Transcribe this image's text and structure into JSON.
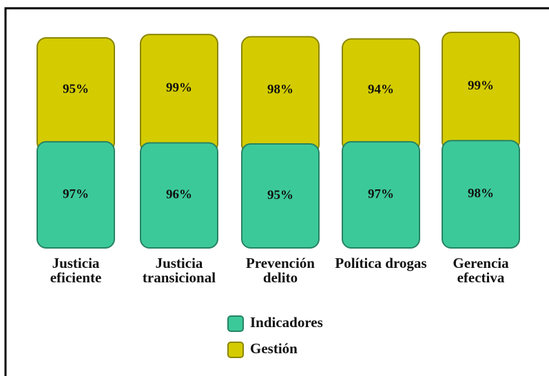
{
  "chart_data": {
    "type": "stacked_bar",
    "categories": [
      "Justicia eficiente",
      "Justicia transicional",
      "Prevención delito",
      "Política drogas",
      "Gerencia efectiva"
    ],
    "series": [
      {
        "name": "Indicadores",
        "color": "#3cc99a",
        "values": [
          97,
          96,
          95,
          97,
          98
        ],
        "value_labels": [
          "97%",
          "96%",
          "95%",
          "97%",
          "98%"
        ]
      },
      {
        "name": "Gestión",
        "color": "#d4cc00",
        "values": [
          95,
          99,
          98,
          94,
          99
        ],
        "value_labels": [
          "95%",
          "99%",
          "98%",
          "94%",
          "99%"
        ]
      }
    ]
  }
}
